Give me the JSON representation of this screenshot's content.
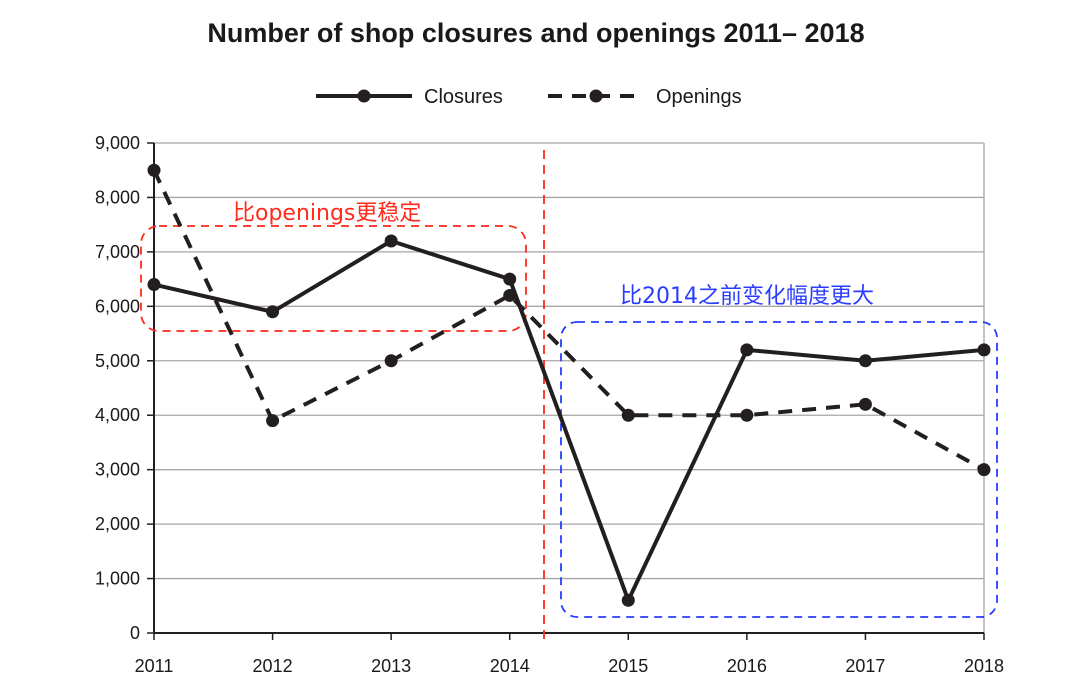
{
  "chart_data": {
    "type": "line",
    "title": "Number of shop closures and openings 2011– 2018",
    "xlabel": "",
    "ylabel": "",
    "categories": [
      "2011",
      "2012",
      "2013",
      "2014",
      "2015",
      "2016",
      "2017",
      "2018"
    ],
    "y_ticks": [
      "0",
      "1,000",
      "2,000",
      "3,000",
      "4,000",
      "5,000",
      "6,000",
      "7,000",
      "8,000",
      "9,000"
    ],
    "ylim": [
      0,
      9000
    ],
    "grid": "horizontal",
    "legend_position": "top-center",
    "series": [
      {
        "name": "Closures",
        "style": "solid",
        "values": [
          6400,
          5900,
          7200,
          6500,
          600,
          5200,
          5000,
          5200
        ]
      },
      {
        "name": "Openings",
        "style": "dashed",
        "values": [
          8500,
          3900,
          5000,
          6200,
          4000,
          4000,
          4200,
          3000
        ]
      }
    ],
    "annotations": [
      {
        "text": "比openings更稳定",
        "color": "#ff2a1a",
        "box_style": "dashed rounded"
      },
      {
        "text": "比2014之前变化幅度更大",
        "color": "#2a3cff",
        "box_style": "dashed rounded"
      }
    ],
    "divider": {
      "between": [
        "2014",
        "2015"
      ],
      "color": "#ff2a1a",
      "style": "dashed"
    }
  },
  "colors": {
    "line": "#231f20",
    "grid": "#a6a6a6",
    "annotation_red": "#ff2a1a",
    "annotation_blue": "#2a3cff"
  }
}
